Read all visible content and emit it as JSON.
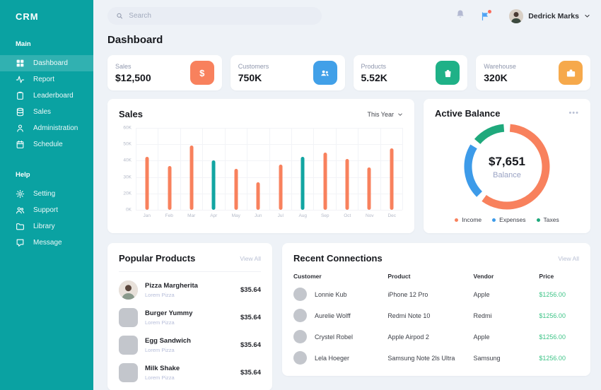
{
  "app": {
    "brand": "CRM"
  },
  "sidebar": {
    "sections": [
      {
        "label": "Main",
        "items": [
          {
            "label": "Dashboard",
            "icon": "dashboard",
            "active": true
          },
          {
            "label": "Report",
            "icon": "report",
            "active": false
          },
          {
            "label": "Leaderboard",
            "icon": "leaderboard",
            "active": false
          },
          {
            "label": "Sales",
            "icon": "sales",
            "active": false
          },
          {
            "label": "Administration",
            "icon": "administration",
            "active": false
          },
          {
            "label": "Schedule",
            "icon": "schedule",
            "active": false
          }
        ]
      },
      {
        "label": "Help",
        "items": [
          {
            "label": "Setting",
            "icon": "setting",
            "active": false
          },
          {
            "label": "Support",
            "icon": "support",
            "active": false
          },
          {
            "label": "Library",
            "icon": "library",
            "active": false
          },
          {
            "label": "Message",
            "icon": "message",
            "active": false
          }
        ]
      }
    ]
  },
  "header": {
    "search_placeholder": "Search",
    "user_name": "Dedrick Marks"
  },
  "page_title": "Dashboard",
  "stats": [
    {
      "label": "Sales",
      "value": "$12,500",
      "icon": "dollar",
      "color": "#F8815D"
    },
    {
      "label": "Customers",
      "value": "750K",
      "icon": "users",
      "color": "#41A0E8"
    },
    {
      "label": "Products",
      "value": "5.52K",
      "icon": "bag",
      "color": "#1FB187"
    },
    {
      "label": "Warehouse",
      "value": "320K",
      "icon": "case",
      "color": "#F6A94B"
    }
  ],
  "chart_data": [
    {
      "type": "bar",
      "title": "Sales",
      "dropdown": "This Year",
      "categories": [
        "Jan",
        "Feb",
        "Mar",
        "Apr",
        "May",
        "Jun",
        "Jul",
        "Aug",
        "Sep",
        "Oct",
        "Nov",
        "Dec"
      ],
      "values": [
        39,
        32,
        47,
        36,
        30,
        20,
        33,
        39,
        42,
        37,
        31,
        45
      ],
      "unit": "K",
      "ylim": [
        0,
        60
      ],
      "y_ticks": [
        "60K",
        "50K",
        "40K",
        "30K",
        "20K",
        "0K"
      ],
      "bar_color": "#F8815D",
      "highlight_color": "#12A5A2",
      "highlight_indices": [
        3,
        7
      ],
      "grid": true
    },
    {
      "type": "donut",
      "title": "Active Balance",
      "menu": "...",
      "center_value": "$7,651",
      "center_label": "Balance",
      "segments": [
        {
          "name": "Income",
          "percent": 61,
          "color": "#F8815D"
        },
        {
          "name": "Expenses",
          "percent": 22,
          "color": "#3D9BE9"
        },
        {
          "name": "Taxes",
          "percent": 13,
          "color": "#1FA97C"
        }
      ],
      "legend_position": "bottom"
    }
  ],
  "popular_products": {
    "title": "Popular Products",
    "view_all": "View All",
    "items": [
      {
        "name": "Pizza Margherita",
        "subtitle": "Lorem Pizza",
        "price": "$35.64",
        "thumb": "photo"
      },
      {
        "name": "Burger Yummy",
        "subtitle": "Lorem Pizza",
        "price": "$35.64",
        "thumb": "placeholder"
      },
      {
        "name": "Egg Sandwich",
        "subtitle": "Lorem Pizza",
        "price": "$35.64",
        "thumb": "placeholder"
      },
      {
        "name": "Milk Shake",
        "subtitle": "Lorem Pizza",
        "price": "$35.64",
        "thumb": "placeholder"
      }
    ]
  },
  "recent_connections": {
    "title": "Recent Connections",
    "view_all": "View All",
    "columns": [
      "Customer",
      "Product",
      "Vendor",
      "Price"
    ],
    "rows": [
      {
        "customer": "Lonnie Kub",
        "product": "iPhone 12 Pro",
        "vendor": "Apple",
        "price": "$1256.00"
      },
      {
        "customer": "Aurelie Wolff",
        "product": "Redmi Note 10",
        "vendor": "Redmi",
        "price": "$1256.00"
      },
      {
        "customer": "Crystel Robel",
        "product": "Apple Airpod 2",
        "vendor": "Apple",
        "price": "$1256.00"
      },
      {
        "customer": "Lela Hoeger",
        "product": "Samsung Note 2ls Ultra",
        "vendor": "Samsung",
        "price": "$1256.00"
      }
    ]
  }
}
